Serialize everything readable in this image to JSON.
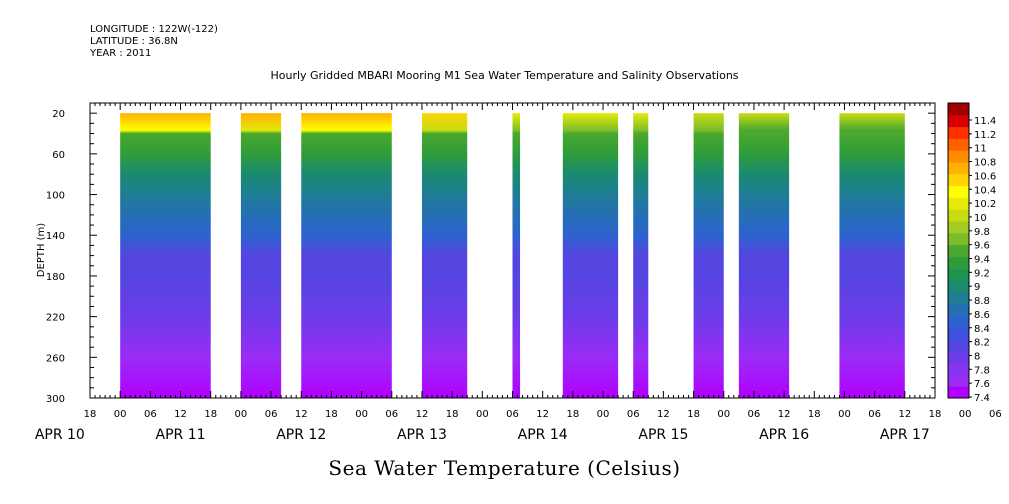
{
  "header": {
    "longitude": "LONGITUDE : 122W(-122)",
    "latitude": "LATITUDE : 36.8N",
    "year": "YEAR : 2011"
  },
  "chart_data": {
    "type": "heatmap",
    "title": "Hourly Gridded MBARI Mooring M1 Sea Water Temperature and Salinity Observations",
    "variable_label": "Sea Water Temperature (Celsius)",
    "ylabel": "DEPTH (m)",
    "y_ticks": [
      20,
      60,
      100,
      140,
      180,
      220,
      260,
      300
    ],
    "ylim": [
      300,
      10
    ],
    "x_hour_ticks": [
      "18",
      "00",
      "06",
      "12",
      "18",
      "00",
      "06",
      "12",
      "18",
      "00",
      "06",
      "12",
      "18",
      "00",
      "06",
      "12",
      "18",
      "00",
      "06",
      "12",
      "18",
      "00",
      "06",
      "12",
      "18",
      "00",
      "06",
      "12",
      "18",
      "00",
      "06",
      "12",
      "18",
      "00",
      "06",
      "12",
      "18"
    ],
    "x_day_labels": [
      "APR 10",
      "APR 11",
      "APR 12",
      "APR 13",
      "APR 14",
      "APR 15",
      "APR 16",
      "APR 17"
    ],
    "colorbar_levels": [
      "7.4",
      "7.6",
      "7.8",
      "8",
      "8.2",
      "8.4",
      "8.6",
      "8.8",
      "9",
      "9.2",
      "9.4",
      "9.6",
      "9.8",
      "10",
      "10.2",
      "10.4",
      "10.6",
      "10.8",
      "11",
      "11.2",
      "11.4"
    ],
    "colorbar_colors": [
      "#b000ff",
      "#9a2cf6",
      "#8436ee",
      "#6c3ce8",
      "#5545e0",
      "#3d52da",
      "#2d63cf",
      "#256fb4",
      "#1f7d95",
      "#1a8a70",
      "#1c9450",
      "#2f9c3a",
      "#4aa82e",
      "#7dbd2a",
      "#a2cc22",
      "#c8dc14",
      "#e6ea08",
      "#ffff00",
      "#ffd400",
      "#ffb000",
      "#ff8c00",
      "#ff6000",
      "#ff3000",
      "#d80000",
      "#a00000"
    ],
    "data_segments": [
      {
        "start": "APR 11 00:00",
        "end": "APR 11 18:00",
        "surface_temp": 10.6
      },
      {
        "start": "APR 12 00:00",
        "end": "APR 12 08:00",
        "surface_temp": 10.5
      },
      {
        "start": "APR 12 12:00",
        "end": "APR 13 06:00",
        "surface_temp": 10.6
      },
      {
        "start": "APR 13 12:00",
        "end": "APR 13 21:00",
        "surface_temp": 10.3
      },
      {
        "start": "APR 14 06:00",
        "end": "APR 14 07:30",
        "surface_temp": 10.0
      },
      {
        "start": "APR 14 16:00",
        "end": "APR 15 03:00",
        "surface_temp": 10.0
      },
      {
        "start": "APR 15 06:00",
        "end": "APR 15 09:00",
        "surface_temp": 10.0
      },
      {
        "start": "APR 15 18:00",
        "end": "APR 16 00:00",
        "surface_temp": 9.9
      },
      {
        "start": "APR 16 03:00",
        "end": "APR 16 13:00",
        "surface_temp": 9.8
      },
      {
        "start": "APR 16 23:00",
        "end": "APR 17 12:00",
        "surface_temp": 9.8
      }
    ],
    "depth_profile": [
      {
        "depth": 20,
        "temp": 10.0
      },
      {
        "depth": 40,
        "temp": 9.4
      },
      {
        "depth": 60,
        "temp": 9.2
      },
      {
        "depth": 80,
        "temp": 9.0
      },
      {
        "depth": 100,
        "temp": 8.8
      },
      {
        "depth": 120,
        "temp": 8.6
      },
      {
        "depth": 140,
        "temp": 8.4
      },
      {
        "depth": 160,
        "temp": 8.2
      },
      {
        "depth": 180,
        "temp": 8.1
      },
      {
        "depth": 220,
        "temp": 7.9
      },
      {
        "depth": 260,
        "temp": 7.7
      },
      {
        "depth": 300,
        "temp": 7.5
      }
    ],
    "grid": false,
    "legend": "right colorbar"
  }
}
